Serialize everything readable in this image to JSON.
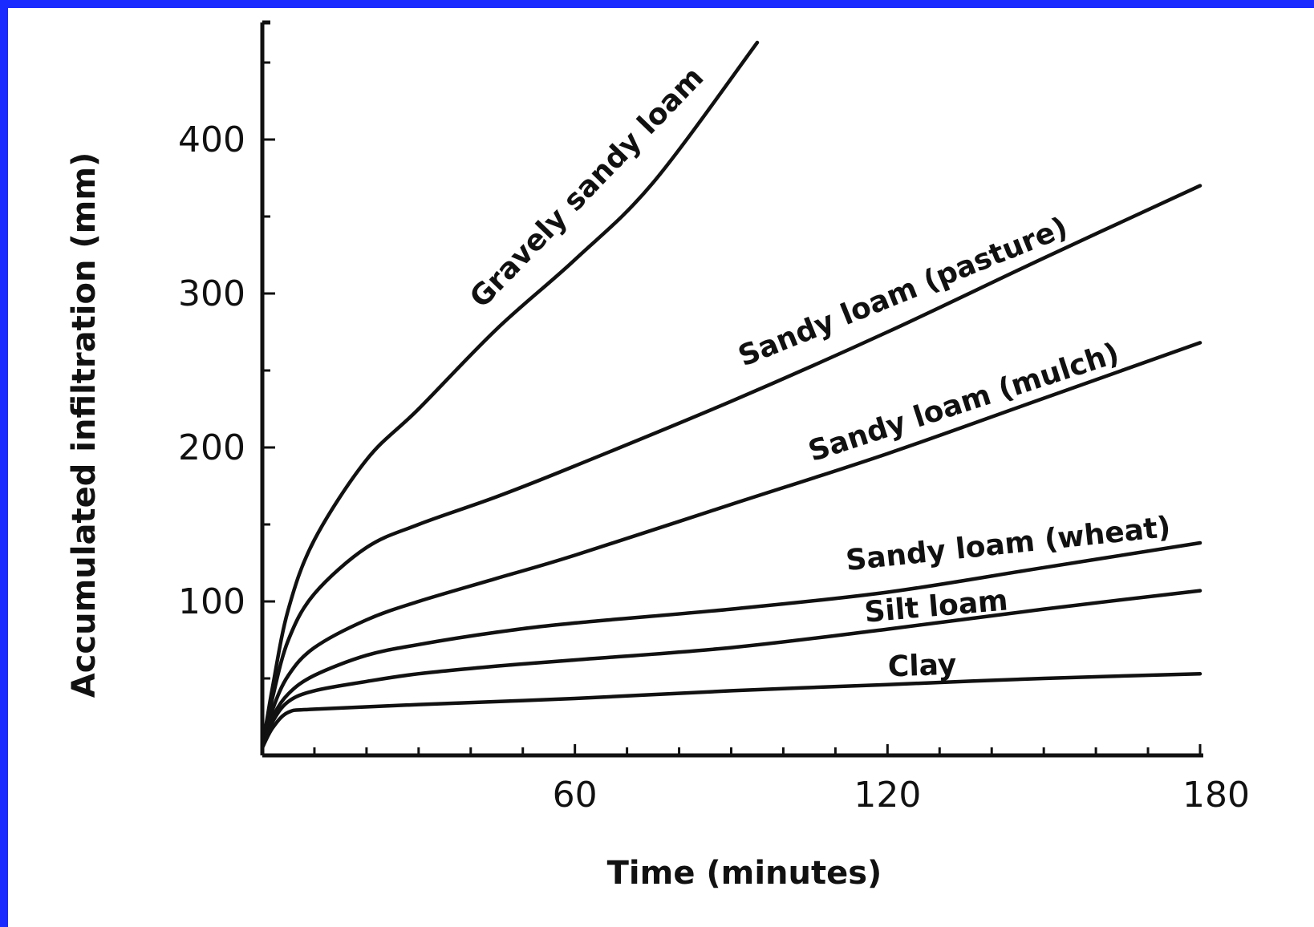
{
  "background_color": "#1a2bff",
  "chart_data": {
    "type": "line",
    "title": "",
    "xlabel": "Time (minutes)",
    "ylabel": "Accumulated infiltration (mm)",
    "xlim": [
      0,
      180
    ],
    "ylim": [
      0,
      475
    ],
    "x_ticks": [
      60,
      120,
      180
    ],
    "y_ticks": [
      100,
      200,
      300,
      400
    ],
    "grid": false,
    "series": [
      {
        "name": "Gravely sandy loam",
        "x": [
          0,
          2,
          5,
          10,
          20,
          30,
          45,
          60,
          75,
          95
        ],
        "y": [
          5,
          45,
          95,
          140,
          192,
          225,
          277,
          322,
          372,
          463
        ]
      },
      {
        "name": "Sandy loam (pasture)",
        "x": [
          0,
          2,
          5,
          10,
          20,
          30,
          45,
          60,
          90,
          120,
          150,
          180
        ],
        "y": [
          5,
          38,
          75,
          105,
          135,
          150,
          168,
          188,
          230,
          275,
          323,
          370
        ]
      },
      {
        "name": "Sandy loam (mulch)",
        "x": [
          0,
          2,
          5,
          10,
          20,
          30,
          45,
          60,
          90,
          120,
          150,
          180
        ],
        "y": [
          5,
          30,
          52,
          70,
          88,
          100,
          115,
          130,
          163,
          196,
          232,
          268
        ]
      },
      {
        "name": "Sandy loam (wheat)",
        "x": [
          0,
          2,
          5,
          10,
          20,
          30,
          45,
          60,
          90,
          120,
          150,
          180
        ],
        "y": [
          5,
          25,
          40,
          52,
          65,
          72,
          80,
          86,
          95,
          106,
          122,
          138
        ]
      },
      {
        "name": "Silt loam",
        "x": [
          0,
          2,
          5,
          10,
          20,
          30,
          45,
          60,
          90,
          120,
          150,
          180
        ],
        "y": [
          5,
          22,
          35,
          42,
          48,
          53,
          58,
          62,
          70,
          82,
          95,
          107
        ]
      },
      {
        "name": "Clay",
        "x": [
          0,
          2,
          5,
          10,
          30,
          60,
          90,
          120,
          150,
          180
        ],
        "y": [
          5,
          18,
          28,
          30,
          33,
          37,
          42,
          46,
          50,
          53
        ]
      }
    ]
  }
}
